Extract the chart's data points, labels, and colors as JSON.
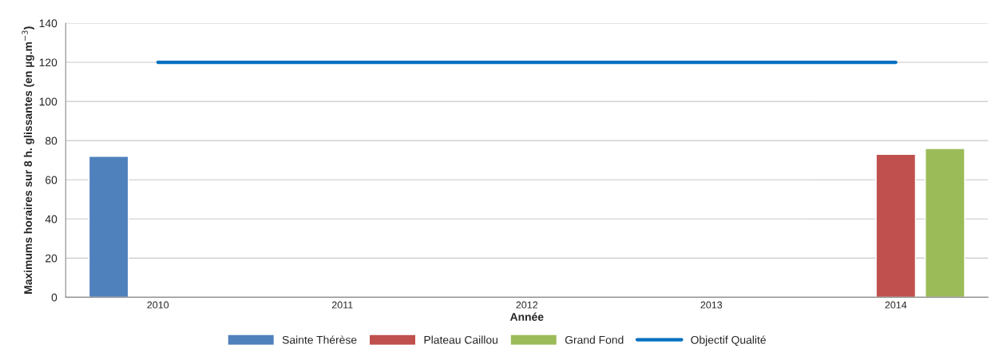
{
  "chart_data": {
    "type": "bar",
    "xlabel": "Année",
    "ylabel": "Maximums horaires sur 8 h. glissantes (en µg.m$^{−3}$)",
    "categories": [
      "2010",
      "2011",
      "2012",
      "2013",
      "2014"
    ],
    "series": [
      {
        "name": "Sainte Thérèse",
        "color": "#4f81bd",
        "values": [
          72,
          null,
          null,
          null,
          null
        ]
      },
      {
        "name": "Plateau Caillou",
        "color": "#c0504d",
        "values": [
          null,
          null,
          null,
          null,
          73
        ]
      },
      {
        "name": "Grand Fond",
        "color": "#9bbb59",
        "values": [
          null,
          null,
          null,
          null,
          76
        ]
      },
      {
        "name": "Objectif Qualité",
        "type": "line",
        "color": "#0070c0",
        "values": [
          120,
          120,
          120,
          120,
          120
        ]
      }
    ],
    "ylim": [
      0,
      140
    ],
    "yticks": [
      0,
      20,
      40,
      60,
      80,
      100,
      120,
      140
    ],
    "grid": "y",
    "legend": "bottom",
    "marker": "none"
  }
}
